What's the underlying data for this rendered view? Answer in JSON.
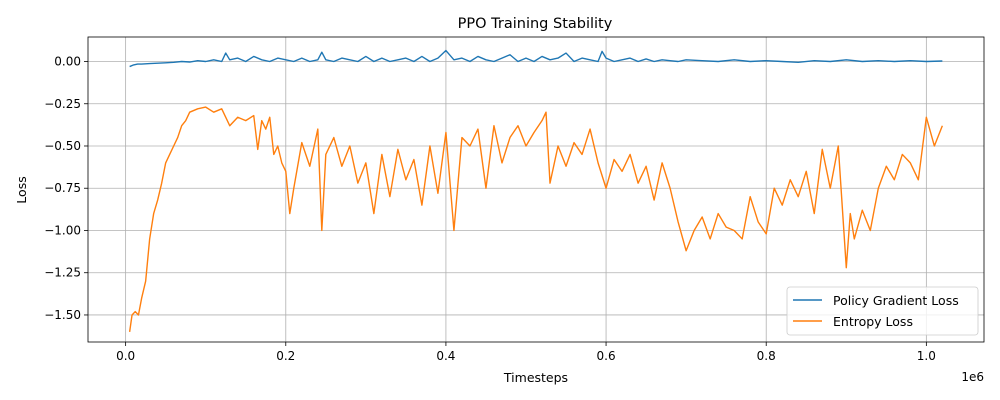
{
  "chart_data": {
    "type": "line",
    "title": "PPO Training Stability",
    "xlabel": "Timesteps",
    "ylabel": "Loss",
    "x_offset_label": "1e6",
    "xlim": [
      -0.047,
      1.072
    ],
    "ylim": [
      -1.66,
      0.145
    ],
    "x_ticks": [
      0.0,
      0.2,
      0.4,
      0.6,
      0.8,
      1.0
    ],
    "x_tick_labels": [
      "0.0",
      "0.2",
      "0.4",
      "0.6",
      "0.8",
      "1.0"
    ],
    "y_ticks": [
      0.0,
      -0.25,
      -0.5,
      -0.75,
      -1.0,
      -1.25,
      -1.5
    ],
    "y_tick_labels": [
      "0.00",
      "−0.25",
      "−0.50",
      "−0.75",
      "−1.00",
      "−1.25",
      "−1.50"
    ],
    "grid": true,
    "legend_position": "lower-right",
    "series": [
      {
        "name": "Policy Gradient Loss",
        "color": "#1f77b4",
        "x": [
          0.005,
          0.01,
          0.015,
          0.02,
          0.03,
          0.04,
          0.05,
          0.06,
          0.07,
          0.08,
          0.09,
          0.1,
          0.11,
          0.12,
          0.125,
          0.13,
          0.14,
          0.15,
          0.16,
          0.17,
          0.18,
          0.19,
          0.2,
          0.21,
          0.22,
          0.23,
          0.24,
          0.245,
          0.25,
          0.26,
          0.27,
          0.28,
          0.29,
          0.3,
          0.31,
          0.32,
          0.33,
          0.34,
          0.35,
          0.36,
          0.37,
          0.38,
          0.39,
          0.4,
          0.41,
          0.42,
          0.43,
          0.44,
          0.45,
          0.46,
          0.47,
          0.48,
          0.49,
          0.5,
          0.51,
          0.52,
          0.53,
          0.54,
          0.55,
          0.56,
          0.57,
          0.58,
          0.59,
          0.595,
          0.6,
          0.61,
          0.62,
          0.63,
          0.64,
          0.65,
          0.66,
          0.67,
          0.68,
          0.69,
          0.7,
          0.72,
          0.74,
          0.76,
          0.78,
          0.8,
          0.82,
          0.84,
          0.86,
          0.88,
          0.9,
          0.92,
          0.94,
          0.96,
          0.98,
          1.0,
          1.02
        ],
        "y": [
          -0.03,
          -0.02,
          -0.015,
          -0.015,
          -0.012,
          -0.01,
          -0.008,
          -0.005,
          0.0,
          -0.003,
          0.005,
          0.0,
          0.01,
          0.0,
          0.05,
          0.01,
          0.02,
          0.0,
          0.03,
          0.01,
          0.0,
          0.02,
          0.01,
          0.0,
          0.02,
          0.0,
          0.01,
          0.055,
          0.01,
          0.0,
          0.02,
          0.01,
          0.0,
          0.03,
          0.0,
          0.02,
          0.0,
          0.01,
          0.02,
          0.0,
          0.03,
          0.0,
          0.02,
          0.065,
          0.01,
          0.02,
          0.0,
          0.03,
          0.01,
          0.0,
          0.02,
          0.04,
          0.0,
          0.02,
          0.0,
          0.03,
          0.01,
          0.02,
          0.05,
          0.0,
          0.02,
          0.01,
          0.0,
          0.06,
          0.02,
          0.0,
          0.01,
          0.02,
          0.0,
          0.015,
          0.0,
          0.01,
          0.005,
          0.0,
          0.01,
          0.005,
          0.0,
          0.01,
          0.0,
          0.005,
          0.0,
          -0.005,
          0.005,
          0.0,
          0.01,
          0.0,
          0.005,
          0.0,
          0.005,
          0.0,
          0.003
        ]
      },
      {
        "name": "Entropy Loss",
        "color": "#ff7f0e",
        "x": [
          0.005,
          0.008,
          0.012,
          0.016,
          0.02,
          0.025,
          0.03,
          0.035,
          0.04,
          0.045,
          0.05,
          0.055,
          0.06,
          0.065,
          0.07,
          0.075,
          0.08,
          0.09,
          0.1,
          0.11,
          0.12,
          0.13,
          0.14,
          0.15,
          0.16,
          0.165,
          0.17,
          0.175,
          0.18,
          0.185,
          0.19,
          0.195,
          0.2,
          0.205,
          0.21,
          0.22,
          0.23,
          0.24,
          0.245,
          0.25,
          0.26,
          0.27,
          0.28,
          0.29,
          0.3,
          0.31,
          0.32,
          0.33,
          0.34,
          0.35,
          0.36,
          0.37,
          0.38,
          0.39,
          0.4,
          0.41,
          0.42,
          0.43,
          0.44,
          0.45,
          0.46,
          0.47,
          0.48,
          0.49,
          0.5,
          0.51,
          0.52,
          0.525,
          0.53,
          0.54,
          0.55,
          0.56,
          0.57,
          0.58,
          0.59,
          0.6,
          0.61,
          0.62,
          0.63,
          0.64,
          0.65,
          0.66,
          0.67,
          0.68,
          0.69,
          0.7,
          0.71,
          0.72,
          0.73,
          0.74,
          0.75,
          0.76,
          0.77,
          0.78,
          0.79,
          0.8,
          0.81,
          0.82,
          0.83,
          0.84,
          0.85,
          0.86,
          0.87,
          0.88,
          0.89,
          0.9,
          0.905,
          0.91,
          0.92,
          0.93,
          0.94,
          0.95,
          0.96,
          0.97,
          0.98,
          0.99,
          1.0,
          1.01,
          1.02
        ],
        "y": [
          -1.6,
          -1.5,
          -1.48,
          -1.5,
          -1.4,
          -1.3,
          -1.05,
          -0.9,
          -0.82,
          -0.72,
          -0.6,
          -0.55,
          -0.5,
          -0.45,
          -0.38,
          -0.35,
          -0.3,
          -0.28,
          -0.27,
          -0.3,
          -0.28,
          -0.38,
          -0.33,
          -0.35,
          -0.32,
          -0.52,
          -0.35,
          -0.4,
          -0.33,
          -0.55,
          -0.5,
          -0.6,
          -0.65,
          -0.9,
          -0.75,
          -0.48,
          -0.62,
          -0.4,
          -1.0,
          -0.55,
          -0.45,
          -0.62,
          -0.5,
          -0.72,
          -0.6,
          -0.9,
          -0.55,
          -0.8,
          -0.52,
          -0.7,
          -0.58,
          -0.85,
          -0.5,
          -0.78,
          -0.42,
          -1.0,
          -0.45,
          -0.5,
          -0.4,
          -0.75,
          -0.38,
          -0.6,
          -0.45,
          -0.38,
          -0.5,
          -0.42,
          -0.35,
          -0.3,
          -0.72,
          -0.5,
          -0.62,
          -0.48,
          -0.55,
          -0.4,
          -0.6,
          -0.75,
          -0.58,
          -0.65,
          -0.55,
          -0.72,
          -0.62,
          -0.82,
          -0.6,
          -0.75,
          -0.95,
          -1.12,
          -1.0,
          -0.92,
          -1.05,
          -0.9,
          -0.98,
          -1.0,
          -1.05,
          -0.8,
          -0.95,
          -1.02,
          -0.75,
          -0.85,
          -0.7,
          -0.8,
          -0.65,
          -0.9,
          -0.52,
          -0.75,
          -0.5,
          -1.22,
          -0.9,
          -1.05,
          -0.88,
          -1.0,
          -0.75,
          -0.62,
          -0.7,
          -0.55,
          -0.6,
          -0.7,
          -0.33,
          -0.5,
          -0.38
        ]
      }
    ]
  }
}
